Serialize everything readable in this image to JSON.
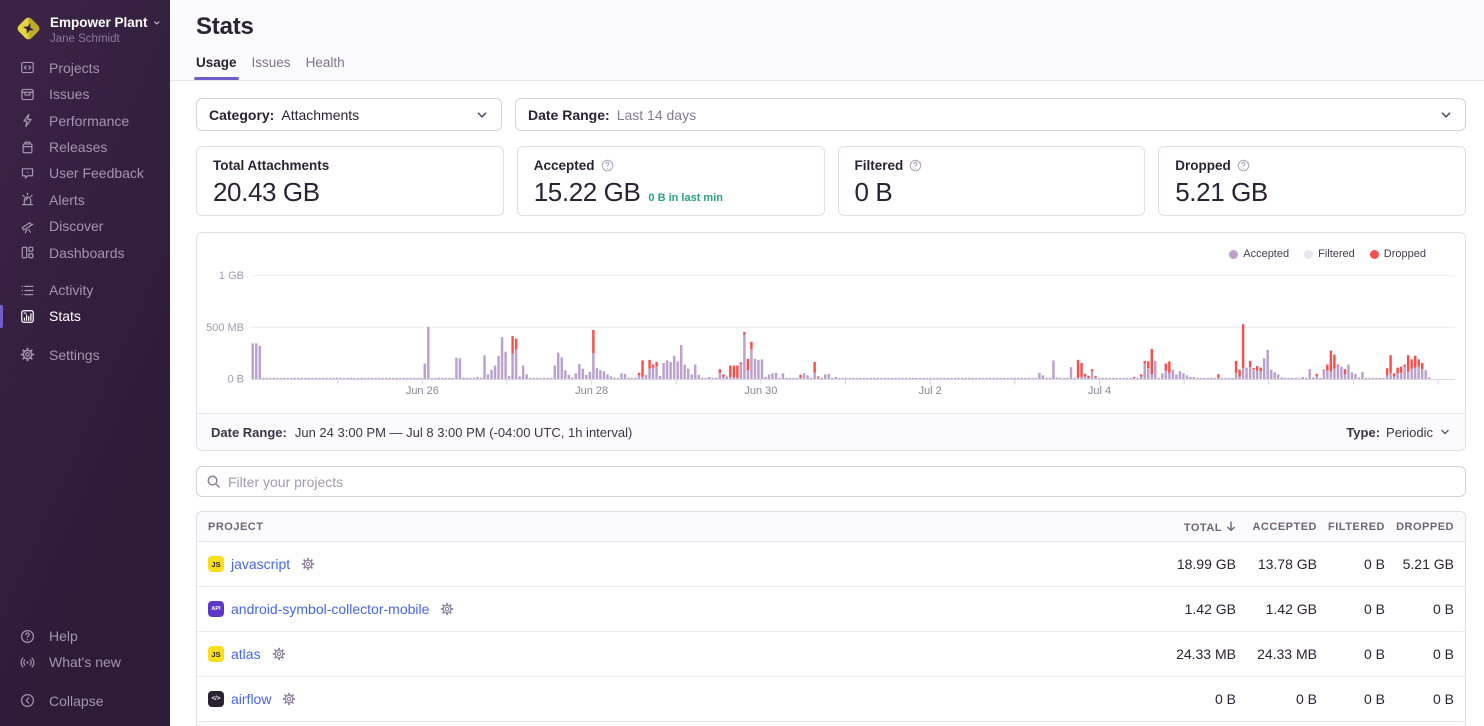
{
  "sidebar": {
    "org_name": "Empower Plant",
    "user_name": "Jane Schmidt",
    "nav_primary": [
      {
        "label": "Projects",
        "icon": "projects"
      },
      {
        "label": "Issues",
        "icon": "issues"
      },
      {
        "label": "Performance",
        "icon": "performance"
      },
      {
        "label": "Releases",
        "icon": "releases"
      },
      {
        "label": "User Feedback",
        "icon": "user-feedback"
      },
      {
        "label": "Alerts",
        "icon": "alerts"
      },
      {
        "label": "Discover",
        "icon": "discover"
      },
      {
        "label": "Dashboards",
        "icon": "dashboards"
      }
    ],
    "nav_secondary": [
      {
        "label": "Activity",
        "icon": "activity"
      },
      {
        "label": "Stats",
        "icon": "stats",
        "active": true
      }
    ],
    "nav_tertiary": [
      {
        "label": "Settings",
        "icon": "settings"
      }
    ],
    "nav_footer": [
      {
        "label": "Help",
        "icon": "help"
      },
      {
        "label": "What's new",
        "icon": "whats-new"
      }
    ],
    "nav_collapse": [
      {
        "label": "Collapse",
        "icon": "collapse"
      }
    ]
  },
  "header": {
    "title": "Stats",
    "tabs": [
      {
        "label": "Usage",
        "active": true
      },
      {
        "label": "Issues"
      },
      {
        "label": "Health"
      }
    ]
  },
  "filters": {
    "category": {
      "label": "Category:",
      "value": "Attachments"
    },
    "date_range": {
      "label": "Date Range:",
      "value": "Last 14 days"
    }
  },
  "cards": [
    {
      "title": "Total Attachments",
      "value": "20.43 GB"
    },
    {
      "title": "Accepted",
      "value": "15.22 GB",
      "subtext": "0 B in last min",
      "has_help": true
    },
    {
      "title": "Filtered",
      "value": "0 B",
      "has_help": true
    },
    {
      "title": "Dropped",
      "value": "5.21 GB",
      "has_help": true
    }
  ],
  "chart_footer": {
    "label": "Date Range:",
    "value": "Jun 24 3:00 PM — Jul 8 3:00 PM (-04:00 UTC, 1h interval)",
    "type_label": "Type:",
    "type_value": "Periodic"
  },
  "search": {
    "placeholder": "Filter your projects"
  },
  "table": {
    "columns": [
      {
        "label": "PROJECT"
      },
      {
        "label": "TOTAL",
        "sorted": "desc"
      },
      {
        "label": "ACCEPTED"
      },
      {
        "label": "FILTERED"
      },
      {
        "label": "DROPPED"
      }
    ],
    "rows": [
      {
        "project": "javascript",
        "platform": {
          "label": "JS",
          "bg": "#f7df1e",
          "fg": "#2b2233",
          "font": 7.5
        },
        "total": "18.99 GB",
        "accepted": "13.78 GB",
        "filtered": "0 B",
        "dropped": "5.21 GB"
      },
      {
        "project": "android-symbol-collector-mobile",
        "platform": {
          "label": "API",
          "bg": "#6036c8",
          "fg": "#ffffff",
          "font": 5.5
        },
        "total": "1.42 GB",
        "accepted": "1.42 GB",
        "filtered": "0 B",
        "dropped": "0 B"
      },
      {
        "project": "atlas",
        "platform": {
          "label": "JS",
          "bg": "#f7df1e",
          "fg": "#2b2233",
          "font": 7.5
        },
        "total": "24.33 MB",
        "accepted": "24.33 MB",
        "filtered": "0 B",
        "dropped": "0 B"
      },
      {
        "project": "airflow",
        "platform": {
          "label": "</>",
          "bg": "#2b2233",
          "fg": "#ffffff",
          "font": 6
        },
        "total": "0 B",
        "accepted": "0 B",
        "filtered": "0 B",
        "dropped": "0 B"
      }
    ]
  },
  "chart_data": {
    "type": "bar",
    "stacked": true,
    "unit": "MB",
    "title": "Attachments usage over time (1h interval)",
    "ylim_mb": [
      0,
      1100
    ],
    "y_ticks": [
      {
        "label": "0 B",
        "value_mb": 0
      },
      {
        "label": "500 MB",
        "value_mb": 500
      },
      {
        "label": "1 GB",
        "value_mb": 1000
      }
    ],
    "x_axis": {
      "start": "Jun 24 3:00 PM",
      "end": "Jul 8 3:00 PM",
      "interval": "1h",
      "n_points": 336,
      "day_tick_count": 14,
      "labels": [
        {
          "text": "Jun 26",
          "tick": 1
        },
        {
          "text": "Jun 28",
          "tick": 3
        },
        {
          "text": "Jun 30",
          "tick": 5
        },
        {
          "text": "Jul 2",
          "tick": 7
        },
        {
          "text": "Jul 4",
          "tick": 9
        }
      ]
    },
    "legend": [
      {
        "name": "Accepted",
        "color": "#bba1cd"
      },
      {
        "name": "Filtered",
        "color": "#e8e3ed"
      },
      {
        "name": "Dropped",
        "color": "#f4504e"
      }
    ],
    "series": [
      {
        "name": "Accepted",
        "color": "#bba1cd",
        "values_mb": [
          345,
          345,
          320,
          6,
          11,
          10,
          12,
          5,
          8,
          4,
          6,
          9,
          4,
          6,
          10,
          9,
          6,
          9,
          11,
          4,
          11,
          10,
          7,
          5,
          13,
          7,
          5,
          5,
          12,
          9,
          11,
          11,
          9,
          13,
          7,
          9,
          11,
          10,
          12,
          9,
          10,
          4,
          6,
          7,
          5,
          6,
          5,
          7,
          10,
          150,
          505,
          6,
          6,
          12,
          10,
          9,
          6,
          11,
          205,
          200,
          13,
          10,
          9,
          10,
          20,
          11,
          230,
          45,
          90,
          130,
          225,
          405,
          265,
          30,
          245,
          285,
          25,
          130,
          45,
          6,
          9,
          6,
          9,
          12,
          8,
          6,
          130,
          255,
          210,
          85,
          40,
          15,
          55,
          145,
          100,
          40,
          70,
          250,
          105,
          85,
          75,
          45,
          25,
          9,
          6,
          55,
          50,
          8,
          8,
          13,
          35,
          20,
          40,
          100,
          110,
          120,
          30,
          155,
          180,
          165,
          225,
          170,
          330,
          140,
          100,
          45,
          140,
          40,
          12,
          11,
          20,
          5,
          12,
          60,
          20,
          25,
          20,
          15,
          10,
          145,
          430,
          85,
          290,
          195,
          185,
          190,
          20,
          45,
          55,
          60,
          4,
          55,
          5,
          5,
          7,
          4,
          5,
          55,
          35,
          7,
          60,
          15,
          6,
          45,
          50,
          6,
          20,
          4,
          8,
          4,
          8,
          4,
          4,
          5,
          7,
          5,
          6,
          6,
          5,
          6,
          4,
          7,
          3,
          8,
          6,
          7,
          7,
          6,
          5,
          3,
          6,
          5,
          5,
          7,
          7,
          5,
          5,
          5,
          5,
          4,
          4,
          5,
          8,
          6,
          8,
          6,
          5,
          6,
          3,
          4,
          5,
          6,
          6,
          5,
          5,
          4,
          5,
          8,
          7,
          4,
          3,
          6,
          6,
          5,
          60,
          35,
          9,
          12,
          180,
          13,
          5,
          6,
          9,
          115,
          6,
          10,
          20,
          25,
          10,
          75,
          20,
          9,
          9,
          12,
          6,
          10,
          6,
          8,
          10,
          7,
          7,
          5,
          5,
          25,
          150,
          105,
          45,
          175,
          6,
          55,
          80,
          60,
          90,
          45,
          75,
          55,
          35,
          20,
          20,
          4,
          11,
          7,
          10,
          12,
          5,
          10,
          5,
          9,
          6,
          9,
          60,
          25,
          105,
          110,
          115,
          95,
          80,
          75,
          200,
          283,
          90,
          65,
          45,
          15,
          8,
          8,
          7,
          5,
          5,
          20,
          12,
          95,
          15,
          30,
          5,
          95,
          80,
          70,
          100,
          130,
          120,
          45,
          140,
          65,
          50,
          15,
          70,
          5,
          6,
          8,
          4,
          6,
          7,
          35,
          60,
          25,
          55,
          60,
          120,
          70,
          100,
          110,
          120,
          95,
          85,
          15
        ]
      },
      {
        "name": "Filtered",
        "color": "#e8e3ed",
        "values_mb": [
          0,
          0,
          0,
          0,
          0,
          0,
          0,
          0,
          0,
          0,
          0,
          0,
          0,
          0,
          0,
          0,
          0,
          0,
          0,
          0,
          0,
          0,
          0,
          0,
          0,
          0,
          0,
          0,
          0,
          0,
          0,
          0,
          0,
          0,
          0,
          0,
          0,
          0,
          0,
          0,
          0,
          0,
          0,
          0,
          0,
          0,
          0,
          0,
          0,
          0,
          0,
          0,
          0,
          0,
          0,
          0,
          0,
          0,
          0,
          0,
          0,
          0,
          0,
          0,
          0,
          0,
          0,
          0,
          0,
          0,
          0,
          0,
          0,
          0,
          0,
          0,
          0,
          0,
          0,
          0,
          0,
          0,
          0,
          0,
          0,
          0,
          0,
          0,
          0,
          0,
          0,
          0,
          0,
          0,
          0,
          0,
          0,
          0,
          0,
          0,
          0,
          0,
          0,
          0,
          0,
          0,
          0,
          0,
          0,
          0,
          0,
          0,
          0,
          0,
          0,
          0,
          0,
          0,
          0,
          0,
          0,
          0,
          0,
          0,
          0,
          0,
          0,
          0,
          0,
          0,
          0,
          0,
          0,
          0,
          0,
          0,
          0,
          0,
          0,
          0,
          0,
          0,
          0,
          0,
          0,
          0,
          0,
          0,
          0,
          0,
          0,
          0,
          0,
          0,
          0,
          0,
          0,
          0,
          0,
          0,
          0,
          0,
          0,
          0,
          0,
          0,
          0,
          0,
          0,
          0,
          0,
          0,
          0,
          0,
          0,
          0,
          0,
          0,
          0,
          0,
          0,
          0,
          0,
          0,
          0,
          0,
          0,
          0,
          0,
          0,
          0,
          0,
          0,
          0,
          0,
          0,
          0,
          0,
          0,
          0,
          0,
          0,
          0,
          0,
          0,
          0,
          0,
          0,
          0,
          0,
          0,
          0,
          0,
          0,
          0,
          0,
          0,
          0,
          0,
          0,
          0,
          0,
          0,
          0,
          0,
          0,
          0,
          0,
          0,
          0,
          0,
          0,
          0,
          0,
          0,
          0,
          0,
          0,
          0,
          0,
          0,
          0,
          0,
          0,
          0,
          0,
          0,
          0,
          0,
          0,
          0,
          0,
          0,
          0,
          0,
          0,
          0,
          0,
          0,
          0,
          0,
          0,
          0,
          0,
          0,
          0,
          0,
          0,
          0,
          0,
          0,
          0,
          0,
          0,
          0,
          0,
          0,
          0,
          0,
          0,
          0,
          0,
          0,
          0,
          0,
          0,
          0,
          0,
          0,
          0,
          0,
          0,
          0,
          0,
          0,
          0,
          0,
          0,
          0,
          0,
          0,
          0,
          0,
          0,
          0,
          0,
          0,
          0,
          0,
          0,
          0,
          0,
          0,
          0,
          0,
          0,
          0,
          0,
          0,
          0,
          0,
          0,
          0,
          0,
          0,
          0,
          0,
          0,
          0,
          0,
          0,
          0,
          0,
          0,
          0,
          0
        ]
      },
      {
        "name": "Dropped",
        "color": "#f4504e",
        "values_mb": [
          0,
          0,
          0,
          0,
          0,
          0,
          0,
          0,
          0,
          0,
          0,
          0,
          0,
          0,
          0,
          0,
          0,
          0,
          0,
          0,
          0,
          0,
          0,
          0,
          0,
          0,
          0,
          0,
          0,
          0,
          0,
          0,
          0,
          0,
          0,
          0,
          0,
          0,
          0,
          0,
          0,
          0,
          0,
          0,
          0,
          0,
          0,
          0,
          0,
          0,
          0,
          0,
          0,
          0,
          0,
          0,
          0,
          0,
          0,
          0,
          0,
          0,
          0,
          0,
          0,
          0,
          0,
          0,
          0,
          0,
          0,
          0,
          0,
          0,
          170,
          105,
          0,
          0,
          0,
          0,
          0,
          0,
          0,
          0,
          0,
          0,
          0,
          0,
          0,
          0,
          0,
          0,
          0,
          0,
          0,
          0,
          0,
          225,
          0,
          0,
          0,
          0,
          0,
          0,
          0,
          0,
          0,
          0,
          0,
          0,
          25,
          160,
          0,
          85,
          30,
          45,
          0,
          0,
          0,
          0,
          0,
          0,
          0,
          0,
          0,
          0,
          0,
          0,
          0,
          0,
          0,
          0,
          0,
          35,
          25,
          0,
          110,
          115,
          120,
          15,
          25,
          110,
          70,
          0,
          0,
          0,
          0,
          0,
          0,
          0,
          0,
          0,
          0,
          0,
          0,
          0,
          30,
          0,
          0,
          0,
          105,
          10,
          0,
          0,
          0,
          0,
          0,
          0,
          0,
          0,
          0,
          0,
          0,
          0,
          0,
          0,
          0,
          0,
          0,
          0,
          0,
          0,
          0,
          0,
          0,
          0,
          0,
          0,
          0,
          0,
          0,
          0,
          0,
          0,
          0,
          0,
          0,
          0,
          0,
          0,
          0,
          0,
          0,
          0,
          0,
          0,
          0,
          0,
          0,
          0,
          0,
          0,
          0,
          0,
          0,
          0,
          0,
          0,
          0,
          0,
          0,
          0,
          0,
          0,
          0,
          0,
          0,
          0,
          0,
          0,
          0,
          0,
          0,
          0,
          0,
          175,
          135,
          25,
          20,
          20,
          10,
          0,
          0,
          0,
          0,
          0,
          0,
          0,
          0,
          0,
          0,
          10,
          0,
          20,
          25,
          65,
          245,
          0,
          0,
          0,
          70,
          110,
          0,
          0,
          0,
          0,
          0,
          0,
          0,
          0,
          0,
          0,
          0,
          0,
          0,
          35,
          0,
          0,
          0,
          0,
          115,
          65,
          425,
          0,
          60,
          12,
          45,
          35,
          0,
          0,
          0,
          0,
          0,
          0,
          0,
          0,
          0,
          0,
          0,
          0,
          0,
          0,
          0,
          20,
          0,
          0,
          60,
          205,
          135,
          10,
          0,
          50,
          0,
          0,
          0,
          0,
          0,
          0,
          0,
          0,
          0,
          0,
          0,
          70,
          170,
          30,
          55,
          60,
          20,
          160,
          90,
          115,
          70,
          60,
          0,
          0
        ]
      }
    ]
  }
}
